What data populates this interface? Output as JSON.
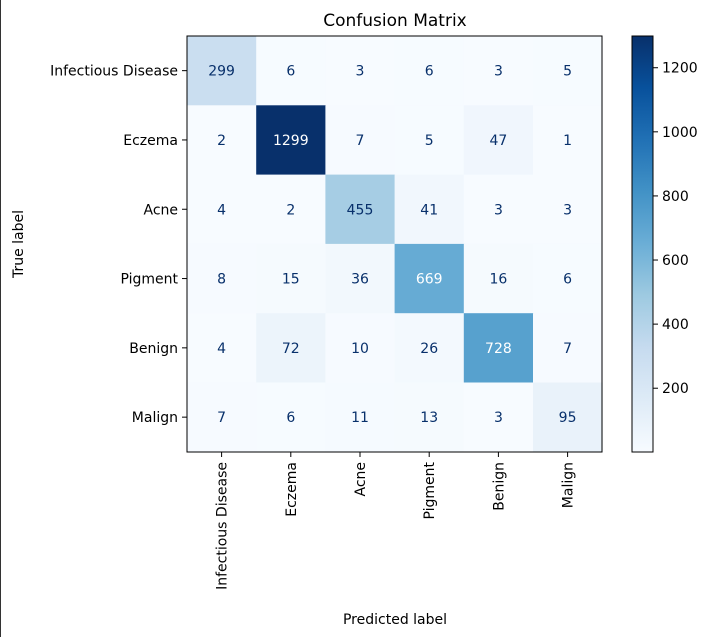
{
  "chart_data": {
    "type": "heatmap",
    "title": "Confusion Matrix",
    "xlabel": "Predicted label",
    "ylabel": "True label",
    "x_categories": [
      "Infectious Disease",
      "Eczema",
      "Acne",
      "Pigment",
      "Benign",
      "Malign"
    ],
    "y_categories": [
      "Infectious Disease",
      "Eczema",
      "Acne",
      "Pigment",
      "Benign",
      "Malign"
    ],
    "values": [
      [
        299,
        6,
        3,
        6,
        3,
        5
      ],
      [
        2,
        1299,
        7,
        5,
        47,
        1
      ],
      [
        4,
        2,
        455,
        41,
        3,
        3
      ],
      [
        8,
        15,
        36,
        669,
        16,
        6
      ],
      [
        4,
        72,
        10,
        26,
        728,
        7
      ],
      [
        7,
        6,
        11,
        13,
        3,
        95
      ]
    ],
    "colormap": "Blues",
    "colorbar": {
      "min": 1,
      "max": 1299,
      "ticks": [
        200,
        400,
        600,
        800,
        1000,
        1200
      ]
    }
  }
}
